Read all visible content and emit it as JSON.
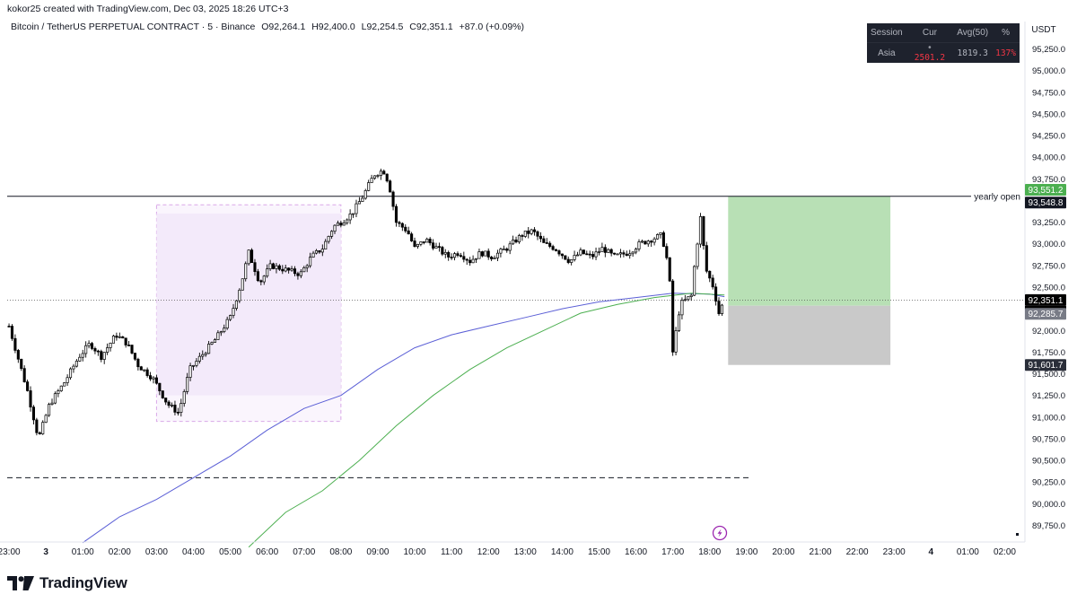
{
  "header": {
    "credit": "kokor25 created with TradingView.com, Dec 03, 2025 18:26 UTC+3",
    "symbol": "Bitcoin / TetherUS PERPETUAL CONTRACT · 5 · Binance",
    "open": "O92,264.1",
    "high": "H92,400.0",
    "low": "L92,254.5",
    "close": "C92,351.1",
    "change": "+87.0 (+0.09%)"
  },
  "currency": "USDT",
  "session_table": {
    "headers": [
      "Session",
      "Cur",
      "Avg(50)",
      "%"
    ],
    "row": [
      "Asia",
      "•",
      "2501.2",
      "1819.3",
      "137%"
    ]
  },
  "brand": "TradingView",
  "colors": {
    "candle": "#000000",
    "ma_blue": "#5b5fd6",
    "ma_green": "#4caf50",
    "target_zone": "#b8e0b5",
    "stop_zone": "#c9c9c9",
    "session_box": "#f3eafa",
    "session_border": "#d9a8e8",
    "price_current": "#000000",
    "price_entry": "#787b86",
    "price_target": "#4caf50",
    "price_stop": "#2a2e39"
  },
  "chart_data": {
    "type": "candlestick",
    "symbol": "BTCUSDT.P",
    "timeframe": "5",
    "y_axis_ticks": [
      95250,
      95000,
      94750,
      94500,
      94250,
      94000,
      93750,
      93250,
      93000,
      92750,
      92500,
      92000,
      91750,
      91500,
      91250,
      91000,
      90750,
      90500,
      90250,
      90000,
      89750
    ],
    "x_axis_ticks": [
      {
        "label": "23:00",
        "h": -1
      },
      {
        "label": "3",
        "h": 0
      },
      {
        "label": "01:00",
        "h": 1
      },
      {
        "label": "02:00",
        "h": 2
      },
      {
        "label": "03:00",
        "h": 3
      },
      {
        "label": "04:00",
        "h": 4
      },
      {
        "label": "05:00",
        "h": 5
      },
      {
        "label": "06:00",
        "h": 6
      },
      {
        "label": "07:00",
        "h": 7
      },
      {
        "label": "08:00",
        "h": 8
      },
      {
        "label": "09:00",
        "h": 9
      },
      {
        "label": "10:00",
        "h": 10
      },
      {
        "label": "11:00",
        "h": 11
      },
      {
        "label": "12:00",
        "h": 12
      },
      {
        "label": "13:00",
        "h": 13
      },
      {
        "label": "14:00",
        "h": 14
      },
      {
        "label": "15:00",
        "h": 15
      },
      {
        "label": "16:00",
        "h": 16
      },
      {
        "label": "17:00",
        "h": 17
      },
      {
        "label": "18:00",
        "h": 18
      },
      {
        "label": "19:00",
        "h": 19
      },
      {
        "label": "20:00",
        "h": 20
      },
      {
        "label": "21:00",
        "h": 21
      },
      {
        "label": "22:00",
        "h": 22
      },
      {
        "label": "23:00",
        "h": 23
      },
      {
        "label": "4",
        "h": 24
      },
      {
        "label": "01:00",
        "h": 25
      },
      {
        "label": "02:00",
        "h": 26
      }
    ],
    "ylim": [
      89600,
      95400
    ],
    "xlim_hours": [
      -1.05,
      26.5
    ],
    "price_path": [
      [
        -1.0,
        92050
      ],
      [
        -0.5,
        91300
      ],
      [
        -0.2,
        90750
      ],
      [
        0.1,
        91150
      ],
      [
        0.5,
        91400
      ],
      [
        0.9,
        91700
      ],
      [
        1.2,
        91850
      ],
      [
        1.5,
        91700
      ],
      [
        1.9,
        91950
      ],
      [
        2.2,
        91850
      ],
      [
        2.5,
        91600
      ],
      [
        2.9,
        91450
      ],
      [
        3.3,
        91150
      ],
      [
        3.6,
        91050
      ],
      [
        3.9,
        91550
      ],
      [
        4.2,
        91700
      ],
      [
        4.6,
        91900
      ],
      [
        5.0,
        92150
      ],
      [
        5.3,
        92550
      ],
      [
        5.5,
        92900
      ],
      [
        5.8,
        92550
      ],
      [
        6.1,
        92750
      ],
      [
        6.5,
        92700
      ],
      [
        6.9,
        92650
      ],
      [
        7.2,
        92850
      ],
      [
        7.5,
        92950
      ],
      [
        7.8,
        93200
      ],
      [
        8.0,
        93250
      ],
      [
        8.3,
        93350
      ],
      [
        8.6,
        93550
      ],
      [
        8.9,
        93800
      ],
      [
        9.15,
        93850
      ],
      [
        9.3,
        93700
      ],
      [
        9.5,
        93250
      ],
      [
        9.8,
        93150
      ],
      [
        10.0,
        92950
      ],
      [
        10.3,
        93050
      ],
      [
        10.6,
        92950
      ],
      [
        10.9,
        92850
      ],
      [
        11.2,
        92900
      ],
      [
        11.5,
        92800
      ],
      [
        11.8,
        92900
      ],
      [
        12.1,
        92850
      ],
      [
        12.5,
        92950
      ],
      [
        12.9,
        93100
      ],
      [
        13.2,
        93150
      ],
      [
        13.5,
        93000
      ],
      [
        13.8,
        92950
      ],
      [
        14.2,
        92800
      ],
      [
        14.5,
        92900
      ],
      [
        14.8,
        92850
      ],
      [
        15.1,
        92950
      ],
      [
        15.4,
        92850
      ],
      [
        15.8,
        92900
      ],
      [
        16.1,
        93000
      ],
      [
        16.4,
        93050
      ],
      [
        16.7,
        93100
      ],
      [
        16.9,
        92700
      ],
      [
        17.0,
        91750
      ],
      [
        17.2,
        92300
      ],
      [
        17.5,
        92400
      ],
      [
        17.6,
        92800
      ],
      [
        17.75,
        93300
      ],
      [
        17.9,
        92700
      ],
      [
        18.1,
        92500
      ],
      [
        18.25,
        92200
      ],
      [
        18.4,
        92351
      ]
    ],
    "series": [
      {
        "name": "",
        "type": "line",
        "points": [
          [
            1.0,
            89550
          ],
          [
            2.0,
            89850
          ],
          [
            3.0,
            90050
          ],
          [
            4.0,
            90300
          ],
          [
            5.0,
            90550
          ],
          [
            6.0,
            90850
          ],
          [
            7.0,
            91100
          ],
          [
            8.0,
            91250
          ],
          [
            9.0,
            91550
          ],
          [
            10.0,
            91800
          ],
          [
            11.0,
            91950
          ],
          [
            12.0,
            92050
          ],
          [
            13.0,
            92150
          ],
          [
            14.0,
            92250
          ],
          [
            15.0,
            92330
          ],
          [
            16.0,
            92380
          ],
          [
            17.0,
            92430
          ],
          [
            18.0,
            92420
          ],
          [
            18.4,
            92390
          ]
        ]
      },
      {
        "name": "",
        "type": "line",
        "points": [
          [
            5.5,
            89500
          ],
          [
            6.5,
            89900
          ],
          [
            7.5,
            90150
          ],
          [
            8.5,
            90500
          ],
          [
            9.5,
            90900
          ],
          [
            10.5,
            91250
          ],
          [
            11.5,
            91550
          ],
          [
            12.5,
            91800
          ],
          [
            13.5,
            92000
          ],
          [
            14.5,
            92200
          ],
          [
            15.5,
            92300
          ],
          [
            16.5,
            92380
          ],
          [
            17.5,
            92430
          ],
          [
            18.4,
            92410
          ]
        ]
      }
    ],
    "annotations": {
      "yearly_open": {
        "price": 93548.8,
        "label": "yearly open"
      },
      "dashed_level": {
        "price": 90300,
        "x_end_hour": 19.1
      },
      "session_box": {
        "x0": 3.0,
        "x1": 8.0,
        "y_high": 93450,
        "y_low": 90950,
        "inner_high": 93350,
        "inner_low": 91250
      },
      "position": {
        "x0": 18.5,
        "x1": 22.9,
        "entry": 92285.7,
        "target": 93551.2,
        "stop": 91601.7
      }
    },
    "price_labels": {
      "target": "93,551.2",
      "yearly_open": "93,548.8",
      "current": "92,351.1",
      "countdown": "03:57",
      "entry": "92,285.7",
      "stop": "91,601.7"
    }
  }
}
